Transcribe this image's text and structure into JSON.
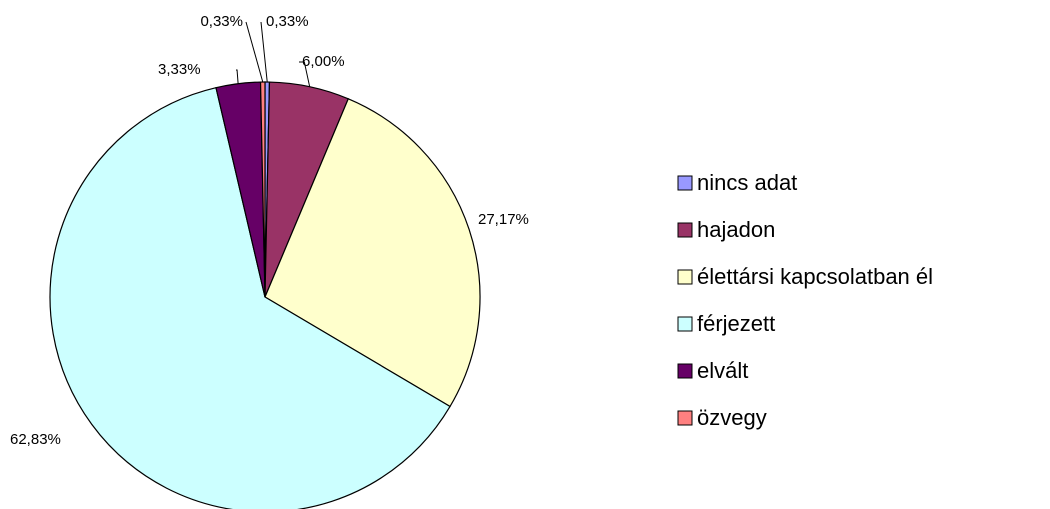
{
  "chart_data": {
    "type": "pie",
    "categories": [
      "nincs adat",
      "hajadon",
      "élettársi kapcsolatban él",
      "férjezett",
      "elvált",
      "özvegy"
    ],
    "values": [
      0.33,
      6.0,
      27.17,
      62.83,
      3.33,
      0.33
    ],
    "value_labels": [
      "0,33%",
      "6,00%",
      "27,17%",
      "62,83%",
      "3,33%",
      "0,33%"
    ],
    "colors": [
      "#9999FF",
      "#993366",
      "#FFFFCC",
      "#CCFFFF",
      "#660066",
      "#FF8080"
    ],
    "legend": "right"
  }
}
